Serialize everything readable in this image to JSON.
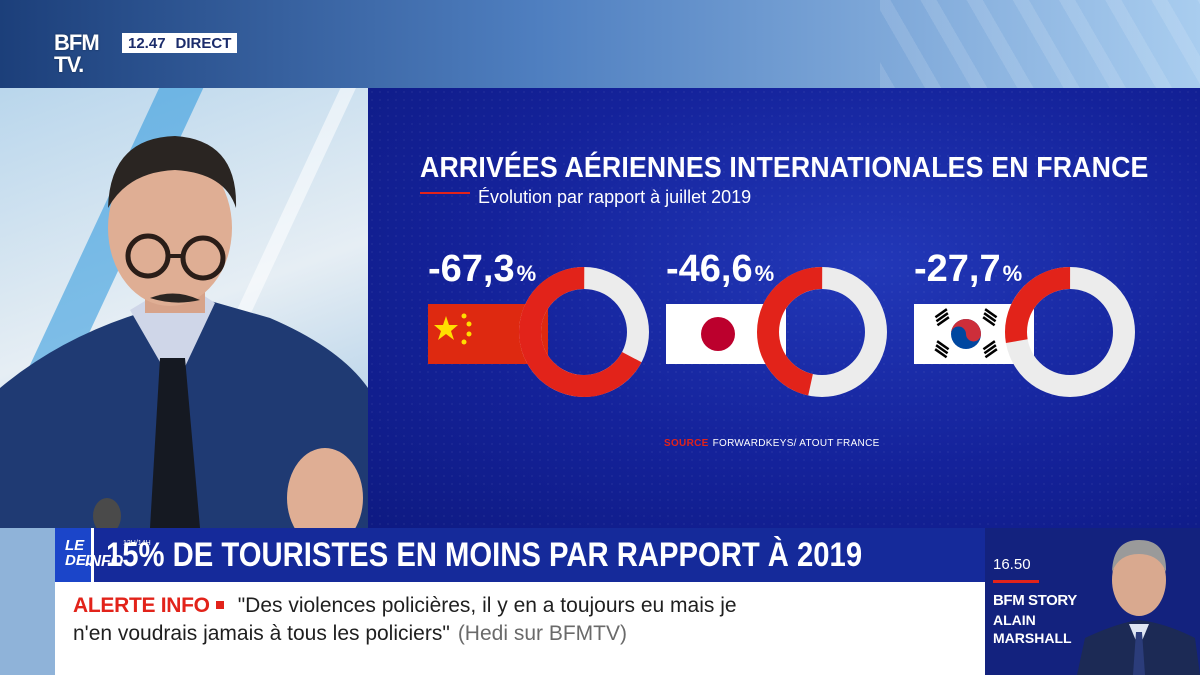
{
  "channel": {
    "logo_line1": "BFM",
    "logo_line2": "TV.",
    "time": "12.47",
    "live_label": "DIRECT"
  },
  "chart_data": {
    "type": "pie",
    "title": "ARRIVÉES AÉRIENNES INTERNATIONALES EN FRANCE",
    "subtitle": "Évolution par rapport à juillet 2019",
    "series": [
      {
        "country": "china-flag",
        "label": "-67,3",
        "unit": "%",
        "value": -67.3
      },
      {
        "country": "japan-flag",
        "label": "-46,6",
        "unit": "%",
        "value": -46.6
      },
      {
        "country": "south-korea-flag",
        "label": "-27,7",
        "unit": "%",
        "value": -27.7
      }
    ],
    "source_label": "SOURCE",
    "source_text": "FORWARDKEYS/ ATOUT FRANCE",
    "colors": {
      "decline": "#e2231a",
      "remainder": "#ececec",
      "background": "#14229a"
    }
  },
  "headline": {
    "show_logo_line1": "LE DEJ",
    "show_logo_line2": "INFO",
    "show_logo_time": "12H/14H",
    "text": "15% DE TOURISTES EN MOINS PAR RAPPORT À 2019"
  },
  "alert": {
    "label": "ALERTE INFO",
    "quote_line1": "\"Des violences policières, il y en a toujours eu mais je",
    "quote_line2": "n'en voudrais jamais à tous les policiers\"",
    "source": "(Hedi sur BFMTV)"
  },
  "next_show": {
    "time": "16.50",
    "title": "BFM STORY",
    "host_first": "ALAIN",
    "host_last": "MARSHALL"
  }
}
